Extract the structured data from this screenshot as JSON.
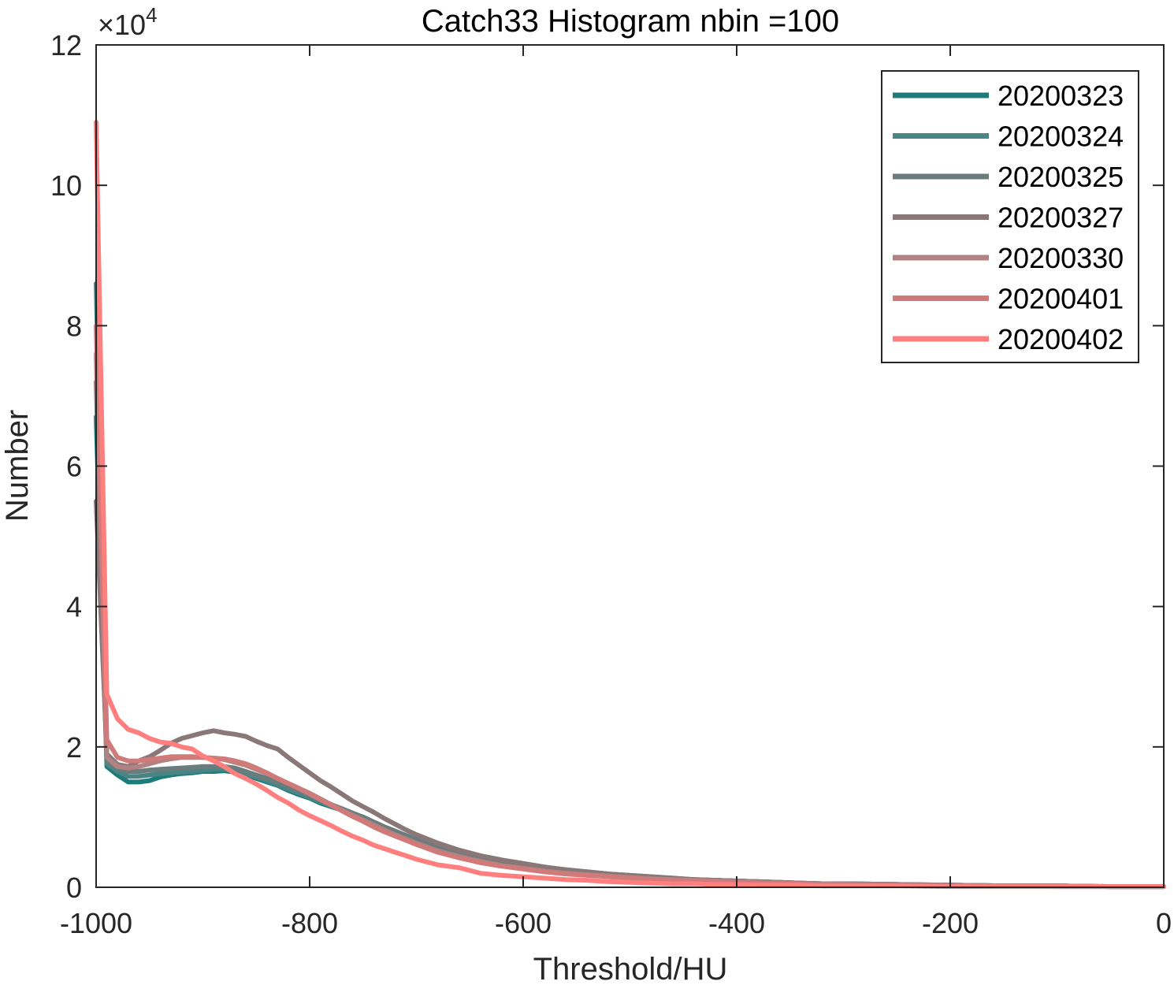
{
  "chart_data": {
    "type": "line",
    "title": "Catch33  Histogram nbin =100",
    "xlabel": "Threshold/HU",
    "ylabel": "Number",
    "y_exponent_label": "×10",
    "y_exponent_power": "4",
    "xlim": [
      -1000,
      0
    ],
    "ylim": [
      0,
      12
    ],
    "x_ticks": [
      -1000,
      -800,
      -600,
      -400,
      -200,
      0
    ],
    "x_tick_labels": [
      "-1000",
      "-800",
      "-600",
      "-400",
      "-200",
      "0"
    ],
    "y_ticks": [
      0,
      2,
      4,
      6,
      8,
      10,
      12
    ],
    "y_tick_labels": [
      "0",
      "2",
      "4",
      "6",
      "8",
      "10",
      "12"
    ],
    "grid": false,
    "legend_position": "top-right",
    "x": [
      -1000,
      -990,
      -980,
      -970,
      -960,
      -950,
      -940,
      -930,
      -920,
      -910,
      -900,
      -890,
      -880,
      -870,
      -860,
      -850,
      -840,
      -830,
      -820,
      -810,
      -800,
      -790,
      -780,
      -770,
      -760,
      -750,
      -740,
      -730,
      -720,
      -710,
      -700,
      -680,
      -660,
      -640,
      -620,
      -600,
      -580,
      -560,
      -540,
      -520,
      -500,
      -480,
      -460,
      -440,
      -420,
      -400,
      -380,
      -360,
      -340,
      -320,
      -300,
      -250,
      -200,
      -150,
      -100,
      -50,
      0
    ],
    "series": [
      {
        "name": "20200323",
        "color": "#1e7b7b",
        "values": [
          6.7,
          1.72,
          1.6,
          1.5,
          1.5,
          1.52,
          1.57,
          1.6,
          1.62,
          1.63,
          1.65,
          1.65,
          1.66,
          1.64,
          1.6,
          1.55,
          1.5,
          1.45,
          1.38,
          1.32,
          1.27,
          1.2,
          1.15,
          1.1,
          1.05,
          1.0,
          0.93,
          0.86,
          0.8,
          0.74,
          0.68,
          0.57,
          0.49,
          0.42,
          0.36,
          0.32,
          0.28,
          0.25,
          0.22,
          0.19,
          0.17,
          0.15,
          0.13,
          0.11,
          0.1,
          0.09,
          0.08,
          0.07,
          0.06,
          0.05,
          0.05,
          0.04,
          0.03,
          0.02,
          0.02,
          0.01,
          0.01
        ]
      },
      {
        "name": "20200324",
        "color": "#4a8585",
        "values": [
          8.6,
          1.76,
          1.65,
          1.58,
          1.58,
          1.6,
          1.62,
          1.63,
          1.64,
          1.65,
          1.67,
          1.68,
          1.68,
          1.66,
          1.62,
          1.57,
          1.52,
          1.46,
          1.4,
          1.34,
          1.28,
          1.22,
          1.16,
          1.1,
          1.04,
          0.98,
          0.92,
          0.85,
          0.79,
          0.73,
          0.67,
          0.56,
          0.48,
          0.41,
          0.35,
          0.31,
          0.27,
          0.24,
          0.21,
          0.18,
          0.16,
          0.14,
          0.12,
          0.11,
          0.1,
          0.09,
          0.08,
          0.07,
          0.06,
          0.05,
          0.05,
          0.04,
          0.03,
          0.02,
          0.02,
          0.01,
          0.01
        ]
      },
      {
        "name": "20200325",
        "color": "#6b7c7c",
        "values": [
          7.2,
          1.8,
          1.7,
          1.65,
          1.65,
          1.67,
          1.68,
          1.69,
          1.7,
          1.71,
          1.72,
          1.72,
          1.72,
          1.7,
          1.65,
          1.6,
          1.55,
          1.5,
          1.44,
          1.38,
          1.32,
          1.25,
          1.18,
          1.12,
          1.06,
          1.0,
          0.93,
          0.86,
          0.8,
          0.74,
          0.68,
          0.57,
          0.48,
          0.41,
          0.35,
          0.3,
          0.26,
          0.23,
          0.2,
          0.18,
          0.16,
          0.14,
          0.12,
          0.1,
          0.09,
          0.08,
          0.07,
          0.06,
          0.06,
          0.05,
          0.04,
          0.03,
          0.03,
          0.02,
          0.02,
          0.01,
          0.01
        ]
      },
      {
        "name": "20200327",
        "color": "#8a7878",
        "values": [
          5.5,
          1.9,
          1.75,
          1.72,
          1.8,
          1.86,
          1.95,
          2.05,
          2.12,
          2.16,
          2.2,
          2.23,
          2.2,
          2.18,
          2.15,
          2.08,
          2.02,
          1.97,
          1.85,
          1.74,
          1.63,
          1.52,
          1.43,
          1.33,
          1.23,
          1.15,
          1.07,
          0.98,
          0.9,
          0.82,
          0.75,
          0.63,
          0.53,
          0.45,
          0.39,
          0.34,
          0.29,
          0.25,
          0.22,
          0.19,
          0.17,
          0.15,
          0.13,
          0.11,
          0.1,
          0.09,
          0.08,
          0.07,
          0.06,
          0.05,
          0.05,
          0.04,
          0.03,
          0.02,
          0.02,
          0.01,
          0.01
        ]
      },
      {
        "name": "20200330",
        "color": "#b08282",
        "values": [
          7.6,
          1.85,
          1.72,
          1.7,
          1.72,
          1.76,
          1.8,
          1.83,
          1.85,
          1.85,
          1.85,
          1.84,
          1.82,
          1.78,
          1.74,
          1.68,
          1.62,
          1.55,
          1.48,
          1.41,
          1.34,
          1.26,
          1.18,
          1.1,
          1.03,
          0.96,
          0.89,
          0.82,
          0.75,
          0.69,
          0.63,
          0.52,
          0.44,
          0.37,
          0.31,
          0.27,
          0.23,
          0.2,
          0.18,
          0.16,
          0.14,
          0.12,
          0.11,
          0.1,
          0.09,
          0.08,
          0.07,
          0.06,
          0.05,
          0.05,
          0.04,
          0.03,
          0.03,
          0.02,
          0.02,
          0.01,
          0.01
        ]
      },
      {
        "name": "20200401",
        "color": "#d07a7a",
        "values": [
          8.0,
          2.1,
          1.85,
          1.8,
          1.8,
          1.82,
          1.84,
          1.86,
          1.86,
          1.86,
          1.85,
          1.84,
          1.83,
          1.8,
          1.76,
          1.7,
          1.63,
          1.55,
          1.48,
          1.41,
          1.33,
          1.25,
          1.17,
          1.09,
          1.01,
          0.94,
          0.86,
          0.79,
          0.73,
          0.67,
          0.61,
          0.5,
          0.42,
          0.35,
          0.3,
          0.26,
          0.22,
          0.19,
          0.17,
          0.15,
          0.13,
          0.11,
          0.1,
          0.09,
          0.08,
          0.07,
          0.06,
          0.06,
          0.05,
          0.04,
          0.04,
          0.03,
          0.02,
          0.02,
          0.01,
          0.01,
          0.01
        ]
      },
      {
        "name": "20200402",
        "color": "#ff7f7f",
        "values": [
          10.9,
          2.75,
          2.4,
          2.25,
          2.2,
          2.12,
          2.07,
          2.05,
          2.0,
          1.97,
          1.87,
          1.8,
          1.72,
          1.62,
          1.55,
          1.47,
          1.38,
          1.28,
          1.2,
          1.1,
          1.02,
          0.95,
          0.88,
          0.8,
          0.73,
          0.67,
          0.6,
          0.55,
          0.5,
          0.45,
          0.4,
          0.32,
          0.28,
          0.2,
          0.17,
          0.15,
          0.13,
          0.11,
          0.1,
          0.08,
          0.07,
          0.06,
          0.05,
          0.05,
          0.04,
          0.04,
          0.03,
          0.03,
          0.03,
          0.02,
          0.02,
          0.02,
          0.01,
          0.01,
          0.01,
          0.01,
          0.01
        ]
      }
    ]
  }
}
